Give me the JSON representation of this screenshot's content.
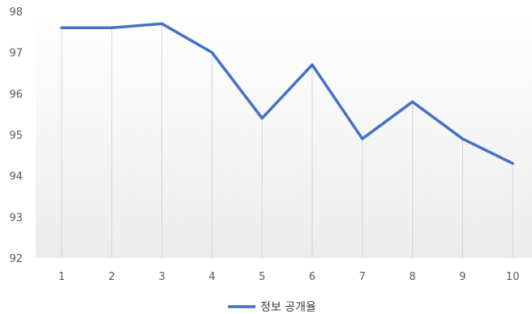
{
  "chart_data": {
    "type": "line",
    "categories": [
      "1",
      "2",
      "3",
      "4",
      "5",
      "6",
      "7",
      "8",
      "9",
      "10"
    ],
    "series": [
      {
        "name": "정보 공개율",
        "values": [
          97.6,
          97.6,
          97.7,
          97.0,
          95.4,
          96.7,
          94.9,
          95.8,
          94.9,
          94.3
        ],
        "color": "#4472C4"
      }
    ],
    "ylim": [
      92,
      98
    ],
    "yticks": [
      "92",
      "93",
      "94",
      "95",
      "96",
      "97",
      "98"
    ],
    "grid": "vertical",
    "legend_position": "bottom"
  }
}
